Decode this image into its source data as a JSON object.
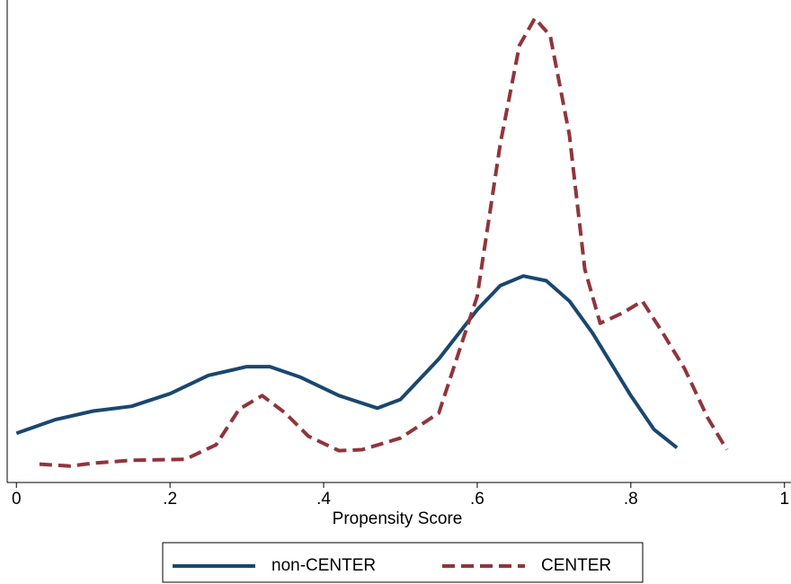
{
  "chart_data": {
    "type": "line",
    "xlabel": "Propensity Score",
    "xlim": [
      -0.012,
      1.005
    ],
    "xticks": [
      0,
      {
        "value": 0.2,
        "label": ".2"
      },
      {
        "value": 0.4,
        "label": ".4"
      },
      {
        "value": 0.6,
        "label": ".6"
      },
      {
        "value": 0.8,
        "label": ".8"
      },
      1
    ],
    "ylim": [
      0,
      5
    ],
    "legend": "bottom",
    "series": [
      {
        "name": "non-CENTER",
        "color": "#1a476f",
        "dash": "solid",
        "x": [
          0,
          0.05,
          0.1,
          0.15,
          0.2,
          0.25,
          0.3,
          0.33,
          0.37,
          0.42,
          0.47,
          0.5,
          0.55,
          0.6,
          0.63,
          0.66,
          0.69,
          0.72,
          0.75,
          0.8,
          0.83,
          0.86
        ],
        "values": [
          0.51,
          0.65,
          0.74,
          0.79,
          0.92,
          1.11,
          1.2,
          1.2,
          1.09,
          0.9,
          0.77,
          0.86,
          1.28,
          1.79,
          2.04,
          2.14,
          2.09,
          1.88,
          1.55,
          0.9,
          0.55,
          0.36
        ]
      },
      {
        "name": "CENTER",
        "color": "#90353b",
        "dash": "dashed",
        "x": [
          0.03,
          0.07,
          0.1,
          0.15,
          0.22,
          0.26,
          0.29,
          0.32,
          0.35,
          0.38,
          0.42,
          0.45,
          0.5,
          0.55,
          0.6,
          0.63,
          0.655,
          0.675,
          0.695,
          0.72,
          0.74,
          0.76,
          0.79,
          0.815,
          0.84,
          0.87,
          0.9,
          0.925
        ],
        "values": [
          0.19,
          0.17,
          0.2,
          0.23,
          0.24,
          0.39,
          0.76,
          0.9,
          0.72,
          0.48,
          0.33,
          0.34,
          0.46,
          0.72,
          1.93,
          3.51,
          4.53,
          4.81,
          4.63,
          3.6,
          2.21,
          1.65,
          1.76,
          1.88,
          1.57,
          1.18,
          0.67,
          0.34
        ]
      }
    ]
  }
}
